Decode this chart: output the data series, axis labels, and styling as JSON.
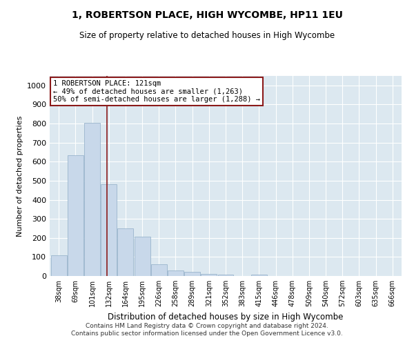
{
  "title": "1, ROBERTSON PLACE, HIGH WYCOMBE, HP11 1EU",
  "subtitle": "Size of property relative to detached houses in High Wycombe",
  "xlabel": "Distribution of detached houses by size in High Wycombe",
  "ylabel": "Number of detached properties",
  "bar_labels": [
    "38sqm",
    "69sqm",
    "101sqm",
    "132sqm",
    "164sqm",
    "195sqm",
    "226sqm",
    "258sqm",
    "289sqm",
    "321sqm",
    "352sqm",
    "383sqm",
    "415sqm",
    "446sqm",
    "478sqm",
    "509sqm",
    "540sqm",
    "572sqm",
    "603sqm",
    "635sqm",
    "666sqm"
  ],
  "bar_values": [
    110,
    635,
    805,
    480,
    250,
    208,
    63,
    28,
    20,
    12,
    8,
    0,
    8,
    0,
    0,
    0,
    0,
    0,
    0,
    0,
    0
  ],
  "bar_color": "#c8d8ea",
  "bar_edge_color": "#9ab5cc",
  "vline_bar_index": 2.87,
  "vline_color": "#8b1a1a",
  "annotation_text_line1": "1 ROBERTSON PLACE: 121sqm",
  "annotation_text_line2": "← 49% of detached houses are smaller (1,263)",
  "annotation_text_line3": "50% of semi-detached houses are larger (1,288) →",
  "ylim": [
    0,
    1050
  ],
  "yticks": [
    0,
    100,
    200,
    300,
    400,
    500,
    600,
    700,
    800,
    900,
    1000
  ],
  "annotation_box_facecolor": "#ffffff",
  "annotation_box_edgecolor": "#8b1a1a",
  "bg_color": "#dce8f0",
  "grid_color": "#ffffff",
  "footer_line1": "Contains HM Land Registry data © Crown copyright and database right 2024.",
  "footer_line2": "Contains public sector information licensed under the Open Government Licence v3.0."
}
